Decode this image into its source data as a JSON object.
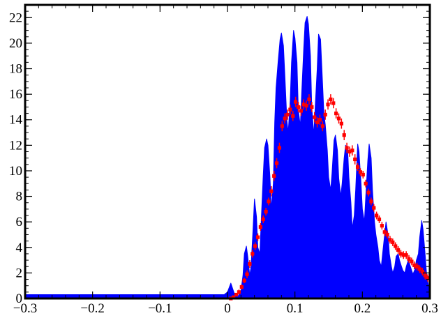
{
  "chart_data": {
    "type": "area",
    "title": "",
    "xlabel": "",
    "ylabel": "",
    "xlim": [
      -0.3,
      0.3
    ],
    "ylim": [
      0,
      23
    ],
    "grid": false,
    "xticks": [
      -0.3,
      -0.2,
      -0.1,
      0,
      0.1,
      0.2,
      0.3
    ],
    "xtick_labels": [
      "−0.3",
      "−0.2",
      "−0.1",
      "0",
      "0.1",
      "0.2",
      "0.3"
    ],
    "yticks": [
      0,
      2,
      4,
      6,
      8,
      10,
      12,
      14,
      16,
      18,
      20,
      22
    ],
    "ytick_labels": [
      "0",
      "2",
      "4",
      "6",
      "8",
      "10",
      "12",
      "14",
      "16",
      "18",
      "20",
      "22"
    ],
    "series": [
      {
        "kind": "filled-area",
        "color": "#0000ff",
        "x": [
          -0.3,
          -0.2,
          -0.1,
          -0.01,
          -0.005,
          0.0,
          0.005,
          0.01,
          0.015,
          0.02,
          0.023,
          0.025,
          0.028,
          0.03,
          0.033,
          0.035,
          0.038,
          0.04,
          0.043,
          0.045,
          0.048,
          0.05,
          0.053,
          0.055,
          0.058,
          0.06,
          0.063,
          0.065,
          0.068,
          0.07,
          0.072,
          0.075,
          0.078,
          0.08,
          0.083,
          0.085,
          0.088,
          0.09,
          0.093,
          0.095,
          0.098,
          0.1,
          0.103,
          0.105,
          0.108,
          0.11,
          0.113,
          0.115,
          0.118,
          0.12,
          0.123,
          0.125,
          0.128,
          0.13,
          0.133,
          0.135,
          0.138,
          0.14,
          0.143,
          0.145,
          0.148,
          0.15,
          0.153,
          0.155,
          0.158,
          0.16,
          0.163,
          0.165,
          0.168,
          0.17,
          0.173,
          0.175,
          0.178,
          0.18,
          0.183,
          0.185,
          0.188,
          0.19,
          0.193,
          0.195,
          0.198,
          0.2,
          0.203,
          0.205,
          0.208,
          0.21,
          0.213,
          0.215,
          0.218,
          0.22,
          0.223,
          0.225,
          0.228,
          0.23,
          0.233,
          0.235,
          0.238,
          0.24,
          0.243,
          0.245,
          0.248,
          0.25,
          0.253,
          0.255,
          0.258,
          0.26,
          0.263,
          0.265,
          0.268,
          0.27,
          0.273,
          0.275,
          0.278,
          0.28,
          0.283,
          0.285,
          0.288,
          0.29,
          0.293,
          0.295,
          0.298,
          0.3
        ],
        "y": [
          0.3,
          0.3,
          0.3,
          0.3,
          0.3,
          0.5,
          1.2,
          0.4,
          0.1,
          0.6,
          1.8,
          3.5,
          4.1,
          3.3,
          1.8,
          2.5,
          5.5,
          7.8,
          6.4,
          4.0,
          3.5,
          6.0,
          9.6,
          11.8,
          12.5,
          12.0,
          9.5,
          7.0,
          9.0,
          13.8,
          16.5,
          18.5,
          20.3,
          20.8,
          19.8,
          17.5,
          14.0,
          13.0,
          15.5,
          18.5,
          21.0,
          20.4,
          18.5,
          14.8,
          13.5,
          16.0,
          19.5,
          21.6,
          22.1,
          21.5,
          19.0,
          15.0,
          12.8,
          15.0,
          18.0,
          20.7,
          20.3,
          18.0,
          14.5,
          13.6,
          11.6,
          9.5,
          8.5,
          9.8,
          12.4,
          12.8,
          11.6,
          9.4,
          8.0,
          9.0,
          11.0,
          12.0,
          11.8,
          9.5,
          7.5,
          5.5,
          6.5,
          8.5,
          12.1,
          11.5,
          9.0,
          7.0,
          6.0,
          8.0,
          10.8,
          12.1,
          11.0,
          8.5,
          6.0,
          5.0,
          4.0,
          3.0,
          2.5,
          3.5,
          5.0,
          6.0,
          5.0,
          3.5,
          2.5,
          2.0,
          2.5,
          3.3,
          3.5,
          3.0,
          2.5,
          2.2,
          2.0,
          2.5,
          3.0,
          2.7,
          2.2,
          1.9,
          2.3,
          3.0,
          3.5,
          4.8,
          6.1,
          5.4,
          3.5,
          2.0,
          1.0,
          0.2
        ]
      },
      {
        "kind": "markers-with-errors",
        "color": "#ff0000",
        "x": [
          0.005,
          0.009,
          0.013,
          0.017,
          0.021,
          0.025,
          0.029,
          0.033,
          0.037,
          0.041,
          0.045,
          0.049,
          0.053,
          0.057,
          0.061,
          0.065,
          0.069,
          0.073,
          0.077,
          0.081,
          0.085,
          0.089,
          0.093,
          0.097,
          0.101,
          0.105,
          0.109,
          0.113,
          0.117,
          0.121,
          0.125,
          0.129,
          0.133,
          0.137,
          0.141,
          0.145,
          0.149,
          0.153,
          0.157,
          0.161,
          0.165,
          0.169,
          0.173,
          0.177,
          0.181,
          0.185,
          0.189,
          0.193,
          0.197,
          0.201,
          0.205,
          0.209,
          0.213,
          0.217,
          0.221,
          0.225,
          0.229,
          0.233,
          0.237,
          0.241,
          0.245,
          0.249,
          0.253,
          0.257,
          0.261,
          0.265,
          0.269,
          0.273,
          0.277,
          0.281,
          0.285,
          0.289,
          0.293,
          0.297
        ],
        "y": [
          0.0,
          0.1,
          0.3,
          0.5,
          0.9,
          1.4,
          1.9,
          2.7,
          3.5,
          4.1,
          4.8,
          5.6,
          6.2,
          6.8,
          7.6,
          8.4,
          9.6,
          10.6,
          11.8,
          13.5,
          14.1,
          14.4,
          14.8,
          14.3,
          15.4,
          15.0,
          14.7,
          15.2,
          15.1,
          15.6,
          15.0,
          14.2,
          13.8,
          14.0,
          13.5,
          14.4,
          15.2,
          15.6,
          15.3,
          14.5,
          14.1,
          13.7,
          12.8,
          11.8,
          11.5,
          11.6,
          10.9,
          10.3,
          9.9,
          9.7,
          9.0,
          8.3,
          7.6,
          7.1,
          6.5,
          6.2,
          5.7,
          5.2,
          5.0,
          4.6,
          4.4,
          4.1,
          3.8,
          3.5,
          3.4,
          3.4,
          3.1,
          2.9,
          2.6,
          2.5,
          2.3,
          2.1,
          1.8,
          1.6
        ],
        "yerr": [
          0.1,
          0.1,
          0.1,
          0.2,
          0.2,
          0.2,
          0.3,
          0.3,
          0.3,
          0.3,
          0.3,
          0.3,
          0.3,
          0.3,
          0.3,
          0.4,
          0.4,
          0.4,
          0.4,
          0.4,
          0.4,
          0.4,
          0.4,
          0.4,
          0.4,
          0.4,
          0.4,
          0.4,
          0.4,
          0.4,
          0.4,
          0.4,
          0.4,
          0.4,
          0.4,
          0.4,
          0.4,
          0.4,
          0.4,
          0.4,
          0.4,
          0.4,
          0.4,
          0.4,
          0.4,
          0.4,
          0.4,
          0.3,
          0.3,
          0.3,
          0.3,
          0.3,
          0.3,
          0.3,
          0.3,
          0.3,
          0.3,
          0.3,
          0.3,
          0.3,
          0.3,
          0.3,
          0.3,
          0.3,
          0.3,
          0.3,
          0.3,
          0.3,
          0.3,
          0.3,
          0.3,
          0.3,
          0.3,
          0.3
        ]
      }
    ]
  }
}
